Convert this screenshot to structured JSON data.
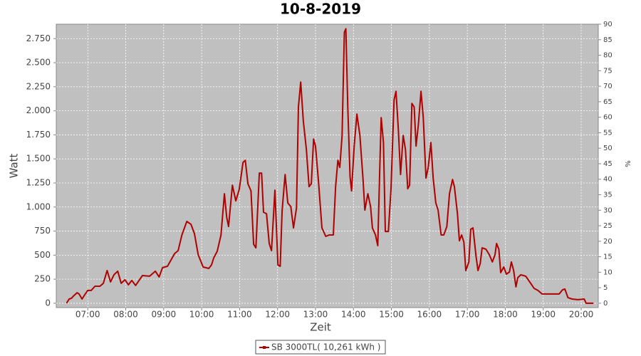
{
  "chart_data": {
    "type": "line",
    "title": "10-8-2019",
    "x_label": "Zeit",
    "y_label": "Watt",
    "y2_label": "%",
    "x": [
      6.44,
      6.51,
      6.57,
      6.62,
      6.72,
      6.77,
      6.85,
      6.92,
      7.0,
      7.09,
      7.19,
      7.32,
      7.41,
      7.51,
      7.6,
      7.69,
      7.79,
      7.88,
      7.98,
      8.07,
      8.16,
      8.26,
      8.35,
      8.44,
      8.63,
      8.78,
      8.88,
      8.97,
      9.1,
      9.29,
      9.38,
      9.48,
      9.61,
      9.72,
      9.81,
      9.91,
      10.04,
      10.19,
      10.26,
      10.32,
      10.41,
      10.51,
      10.6,
      10.66,
      10.71,
      10.81,
      10.9,
      10.99,
      11.09,
      11.15,
      11.22,
      11.3,
      11.37,
      11.43,
      11.52,
      11.58,
      11.63,
      11.71,
      11.78,
      11.84,
      11.93,
      12.01,
      12.07,
      12.12,
      12.2,
      12.27,
      12.35,
      12.42,
      12.5,
      12.55,
      12.61,
      12.68,
      12.76,
      12.83,
      12.89,
      12.95,
      13.0,
      13.08,
      13.17,
      13.27,
      13.36,
      13.47,
      13.53,
      13.59,
      13.64,
      13.7,
      13.76,
      13.8,
      13.85,
      13.91,
      13.95,
      14.02,
      14.09,
      14.17,
      14.25,
      14.3,
      14.38,
      14.45,
      14.5,
      14.58,
      14.64,
      14.69,
      14.73,
      14.79,
      14.84,
      14.92,
      14.99,
      15.07,
      15.12,
      15.18,
      15.24,
      15.31,
      15.37,
      15.43,
      15.48,
      15.54,
      15.6,
      15.65,
      15.71,
      15.78,
      15.84,
      15.91,
      15.97,
      16.04,
      16.1,
      16.17,
      16.23,
      16.31,
      16.38,
      16.46,
      16.53,
      16.61,
      16.66,
      16.74,
      16.79,
      16.85,
      16.91,
      16.96,
      17.04,
      17.09,
      17.15,
      17.23,
      17.28,
      17.34,
      17.39,
      17.49,
      17.58,
      17.66,
      17.73,
      17.77,
      17.83,
      17.88,
      17.96,
      18.03,
      18.11,
      18.16,
      18.22,
      18.28,
      18.33,
      18.41,
      18.54,
      18.67,
      18.76,
      18.86,
      18.97,
      19.14,
      19.33,
      19.42,
      19.51,
      19.57,
      19.65,
      19.76,
      19.91,
      20.08,
      20.13,
      20.32
    ],
    "series": [
      {
        "name": "SB 3000TL( 10,261 kWh )",
        "color": "#b00000",
        "values": [
          0,
          44,
          52,
          74,
          110,
          96,
          44,
          89,
          133,
          133,
          177,
          177,
          207,
          340,
          222,
          296,
          333,
          207,
          244,
          192,
          237,
          185,
          237,
          288,
          281,
          333,
          273,
          370,
          384,
          517,
          547,
          710,
          850,
          820,
          724,
          503,
          377,
          362,
          399,
          473,
          540,
          710,
          1138,
          894,
          798,
          1227,
          1064,
          1183,
          1463,
          1486,
          1242,
          1168,
          613,
          576,
          1353,
          1353,
          946,
          931,
          621,
          547,
          1175,
          399,
          384,
          961,
          1338,
          1042,
          1005,
          783,
          990,
          2040,
          2299,
          1892,
          1596,
          1212,
          1242,
          1707,
          1633,
          1264,
          783,
          695,
          710,
          710,
          1212,
          1486,
          1412,
          1744,
          2816,
          2853,
          2040,
          1316,
          1168,
          1633,
          1966,
          1744,
          1301,
          968,
          1138,
          1005,
          783,
          710,
          599,
          1338,
          1929,
          1670,
          746,
          746,
          1190,
          2114,
          2202,
          1818,
          1338,
          1744,
          1596,
          1190,
          1227,
          2077,
          2040,
          1633,
          1855,
          2202,
          1929,
          1301,
          1412,
          1670,
          1301,
          1042,
          968,
          710,
          710,
          798,
          1138,
          1286,
          1212,
          931,
          650,
          710,
          636,
          340,
          429,
          769,
          783,
          488,
          340,
          414,
          576,
          562,
          503,
          429,
          503,
          621,
          562,
          318,
          377,
          303,
          325,
          429,
          340,
          170,
          266,
          296,
          281,
          207,
          155,
          133,
          96,
          96,
          96,
          96,
          140,
          148,
          59,
          44,
          37,
          44,
          0,
          0
        ]
      }
    ],
    "xlim": [
      6.17,
      20.45
    ],
    "xticks": [
      {
        "value": 7,
        "label": "07:00"
      },
      {
        "value": 8,
        "label": "08:00"
      },
      {
        "value": 9,
        "label": "09:00"
      },
      {
        "value": 10,
        "label": "10:00"
      },
      {
        "value": 11,
        "label": "11:00"
      },
      {
        "value": 12,
        "label": "12:00"
      },
      {
        "value": 13,
        "label": "13:00"
      },
      {
        "value": 14,
        "label": "14:00"
      },
      {
        "value": 15,
        "label": "15:00"
      },
      {
        "value": 16,
        "label": "16:00"
      },
      {
        "value": 17,
        "label": "17:00"
      },
      {
        "value": 18,
        "label": "18:00"
      },
      {
        "value": 19,
        "label": "19:00"
      },
      {
        "value": 20,
        "label": "20:00"
      }
    ],
    "ylim": [
      -45,
      2900
    ],
    "yticks": [
      0,
      250,
      500,
      750,
      {
        "value": 1000,
        "label": "1.000"
      },
      {
        "value": 1250,
        "label": "1.250"
      },
      {
        "value": 1500,
        "label": "1.500"
      },
      {
        "value": 1750,
        "label": "1.750"
      },
      {
        "value": 2000,
        "label": "2.000"
      },
      {
        "value": 2250,
        "label": "2.250"
      },
      {
        "value": 2500,
        "label": "2.500"
      },
      {
        "value": 2750,
        "label": "2.750"
      }
    ],
    "y2lim": [
      -1.4,
      90
    ],
    "y2ticks": [
      0,
      5,
      10,
      15,
      20,
      25,
      30,
      35,
      40,
      45,
      50,
      55,
      60,
      65,
      70,
      75,
      80,
      85,
      90
    ],
    "grid": true,
    "legend": "bottom"
  }
}
